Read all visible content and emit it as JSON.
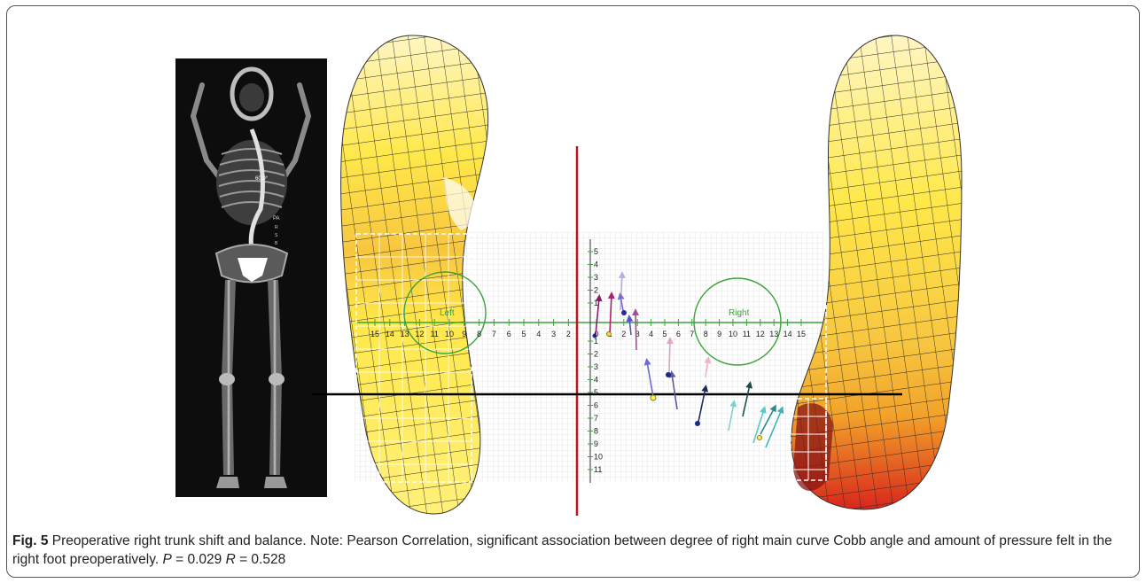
{
  "figure": {
    "xray": {
      "angle_label": "60.0°",
      "marker_text": "PA",
      "side_marks": [
        "R",
        "S",
        "B"
      ]
    },
    "plot": {
      "left_label": "Left",
      "right_label": "Right",
      "x_ticks_left": [
        "15",
        "14",
        "13",
        "12",
        "11",
        "10",
        "9",
        "8",
        "7",
        "6",
        "5",
        "4",
        "3",
        "2"
      ],
      "x_ticks_right": [
        "0",
        "1",
        "2",
        "3",
        "4",
        "5",
        "6",
        "7",
        "8",
        "9",
        "10",
        "11",
        "12",
        "13",
        "14",
        "15"
      ],
      "y_ticks_up": [
        "5",
        "4",
        "3",
        "2",
        "1"
      ],
      "y_ticks_down": [
        "1",
        "2",
        "3",
        "4",
        "5",
        "6",
        "7",
        "8",
        "9",
        "10",
        "11"
      ],
      "colors": {
        "axis_green": "#3aa43a",
        "red_line": "#c0141c",
        "black_line": "#000000",
        "foot_yellow": "#ffe84a",
        "foot_orange": "#f2a32a",
        "foot_red": "#d8261c"
      }
    }
  },
  "caption": {
    "label": "Fig. 5",
    "text": " Preoperative right trunk shift and balance. Note: Pearson Correlation, significant association between degree of right main curve Cobb angle and amount of pressure felt in the right foot preoperatively. ",
    "p_sym": "P",
    "p_val": " = 0.029 ",
    "r_sym": "R",
    "r_val": " = 0.528"
  }
}
